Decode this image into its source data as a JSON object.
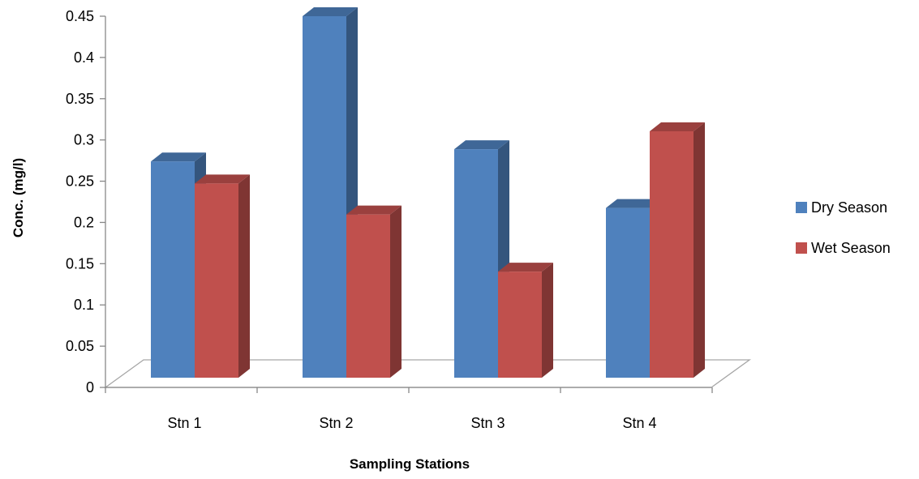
{
  "chart_data": {
    "type": "bar",
    "title": "",
    "xlabel": "Sampling Stations",
    "ylabel": "Conc. (mg/l)",
    "categories": [
      "Stn 1",
      "Stn 2",
      "Stn 3",
      "Stn 4"
    ],
    "series": [
      {
        "name": "Dry Season",
        "values": [
          0.265,
          0.443,
          0.28,
          0.208
        ],
        "color": "#4F81BD"
      },
      {
        "name": "Wet Season",
        "values": [
          0.238,
          0.2,
          0.13,
          0.302
        ],
        "color": "#C0504D"
      }
    ],
    "ylim": [
      0,
      0.45
    ],
    "yticks": [
      "0",
      "0.05",
      "0.1",
      "0.15",
      "0.2",
      "0.25",
      "0.3",
      "0.35",
      "0.4",
      "0.45"
    ],
    "grid": false,
    "legend_position": "right",
    "style": "3d-clustered-column"
  }
}
